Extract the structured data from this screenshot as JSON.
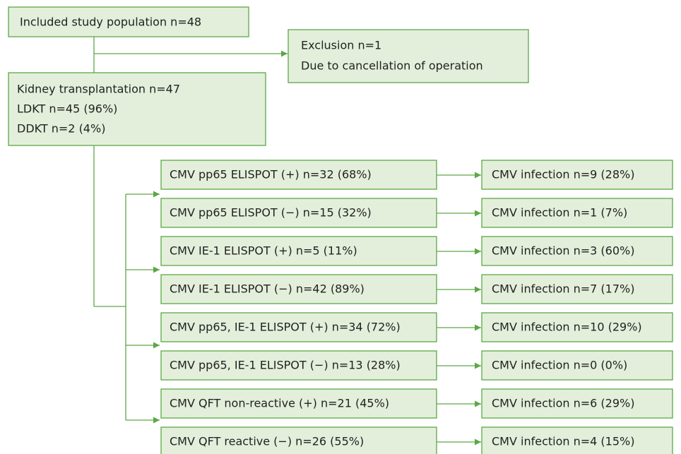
{
  "top": {
    "label": "Included study population  n=48"
  },
  "exclusion": {
    "lines": [
      "Exclusion  n=1",
      "Due to cancellation of operation"
    ]
  },
  "transplant": {
    "lines": [
      "Kidney transplantation  n=47",
      "LDKT n=45 (96%)",
      "DDKT n=2 (4%)"
    ]
  },
  "groups": [
    {
      "test": "CMV pp65 ELISPOT (+) n=32 (68%)",
      "outcome": "CMV infection n=9 (28%)"
    },
    {
      "test": "CMV pp65 ELISPOT (−) n=15 (32%)",
      "outcome": "CMV infection n=1 (7%)"
    },
    {
      "test": "CMV IE-1 ELISPOT (+) n=5 (11%)",
      "outcome": "CMV infection n=3 (60%)"
    },
    {
      "test": "CMV IE-1 ELISPOT (−) n=42 (89%)",
      "outcome": "CMV infection n=7 (17%)"
    },
    {
      "test": "CMV pp65, IE-1 ELISPOT (+) n=34 (72%)",
      "outcome": "CMV infection n=10 (29%)"
    },
    {
      "test": "CMV pp65, IE-1 ELISPOT (−) n=13 (28%)",
      "outcome": "CMV infection n=0 (0%)"
    },
    {
      "test": "CMV QFT non-reactive (+) n=21 (45%)",
      "outcome": "CMV infection n=6 (29%)"
    },
    {
      "test": "CMV QFT reactive (−) n=26 (55%)",
      "outcome": "CMV infection n=4 (15%)"
    }
  ]
}
